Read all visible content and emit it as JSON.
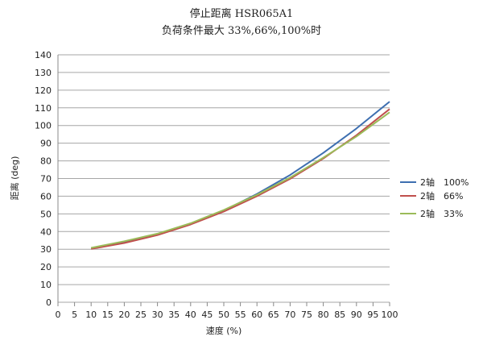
{
  "chart_data": {
    "type": "line",
    "title": "停止距离 HSR065A1",
    "subtitle": "负荷条件最大 33%,66%,100%时",
    "xlabel": "速度 (%)",
    "ylabel": "距离 (deg)",
    "xlim": [
      0,
      100
    ],
    "ylim": [
      0,
      140
    ],
    "x_ticks": [
      "0",
      "5",
      "10",
      "15",
      "20",
      "25",
      "30",
      "35",
      "40",
      "45",
      "50",
      "55",
      "60",
      "65",
      "70",
      "75",
      "80",
      "85",
      "90",
      "95",
      "100"
    ],
    "y_ticks": [
      "0",
      "10",
      "20",
      "30",
      "40",
      "50",
      "60",
      "70",
      "80",
      "90",
      "100",
      "110",
      "120",
      "130",
      "140"
    ],
    "grid": "horizontal",
    "legend_position": "right",
    "x": [
      10,
      20,
      30,
      40,
      50,
      60,
      70,
      80,
      90,
      100
    ],
    "series": [
      {
        "name": "2轴　100%",
        "color": "#3E6FB0",
        "values": [
          30.5,
          33.8,
          38.3,
          44.3,
          51.8,
          61.3,
          72.0,
          84.5,
          98.3,
          113.5
        ]
      },
      {
        "name": "2轴　66%",
        "color": "#C0504D",
        "values": [
          30.2,
          33.5,
          38.0,
          44.0,
          51.3,
          60.0,
          69.8,
          81.3,
          94.5,
          109.3
        ]
      },
      {
        "name": "2轴　33%",
        "color": "#9BBB59",
        "values": [
          30.8,
          34.5,
          38.8,
          44.7,
          52.2,
          60.8,
          70.5,
          81.8,
          93.8,
          107.5
        ]
      }
    ]
  }
}
